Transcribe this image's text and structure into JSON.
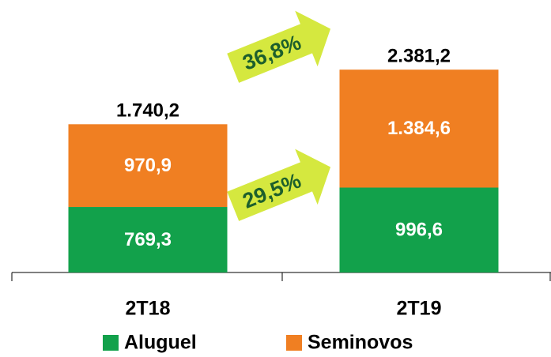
{
  "chart_data": {
    "type": "stacked_bar",
    "categories": [
      "2T18",
      "2T19"
    ],
    "series": [
      {
        "name": "Aluguel",
        "color": "#12a14b",
        "values": [
          769.3,
          996.6
        ],
        "value_labels": [
          "769,3",
          "996,6"
        ]
      },
      {
        "name": "Seminovos",
        "color": "#f07f22",
        "values": [
          970.9,
          1384.6
        ],
        "value_labels": [
          "970,9",
          "1.384,6"
        ]
      }
    ],
    "totals": [
      1740.2,
      2381.2
    ],
    "total_labels": [
      "1.740,2",
      "2.381,2"
    ],
    "annotations": [
      "36,8%",
      "29,5%"
    ],
    "ylim": [
      0,
      2800
    ]
  }
}
